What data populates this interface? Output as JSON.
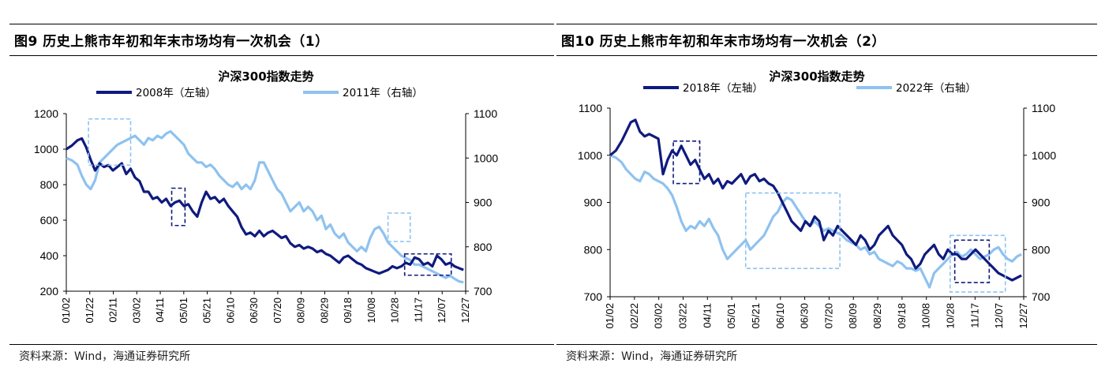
{
  "figures": [
    {
      "title": "图9  历史上熊市年初和年末市场均有一次机会（1）",
      "source": "资料来源：Wind，海通证券研究所"
    },
    {
      "title": "图10 历史上熊市年初和年末市场均有一次机会（2）",
      "source": "资料来源：Wind，海通证券研究所"
    }
  ],
  "chart_data": [
    {
      "type": "line",
      "title": "沪深300指数走势",
      "x_ticks": [
        "01/02",
        "01/22",
        "02/11",
        "03/02",
        "04/11",
        "05/01",
        "05/21",
        "06/10",
        "06/30",
        "07/20",
        "08/09",
        "08/29",
        "09/18",
        "10/08",
        "10/28",
        "11/17",
        "12/07",
        "12/27"
      ],
      "x_range": [
        0,
        360
      ],
      "left_axis": {
        "ticks": [
          200,
          400,
          600,
          800,
          1000,
          1200
        ],
        "ylim": [
          200,
          1200
        ]
      },
      "right_axis": {
        "ticks": [
          700,
          800,
          900,
          1000,
          1100
        ],
        "ylim": [
          700,
          1100
        ]
      },
      "colors": {
        "dark": "#0f1a7e",
        "light": "#8ec2ef"
      },
      "series": [
        {
          "name": "2008年（左轴）",
          "axis": "left",
          "color": "#0f1a7e",
          "x": [
            0,
            5,
            10,
            14,
            18,
            22,
            26,
            30,
            34,
            38,
            42,
            46,
            50,
            54,
            58,
            62,
            66,
            70,
            74,
            78,
            82,
            86,
            90,
            94,
            98,
            102,
            106,
            110,
            114,
            118,
            122,
            126,
            130,
            134,
            138,
            142,
            146,
            150,
            154,
            158,
            162,
            166,
            170,
            174,
            178,
            182,
            186,
            190,
            194,
            198,
            202,
            206,
            210,
            214,
            218,
            222,
            226,
            230,
            234,
            238,
            242,
            246,
            250,
            254,
            258,
            262,
            266,
            270,
            274,
            278,
            282,
            286,
            290,
            294,
            298,
            302,
            306,
            310,
            314,
            318,
            322,
            326,
            330,
            334,
            338,
            342,
            346,
            350,
            354,
            358
          ],
          "y": [
            1000,
            1020,
            1050,
            1060,
            1010,
            940,
            880,
            920,
            900,
            910,
            880,
            900,
            920,
            860,
            890,
            840,
            820,
            760,
            760,
            720,
            730,
            700,
            720,
            680,
            700,
            710,
            680,
            690,
            650,
            620,
            700,
            760,
            720,
            730,
            700,
            720,
            680,
            650,
            620,
            560,
            520,
            530,
            510,
            540,
            510,
            530,
            540,
            520,
            500,
            510,
            470,
            450,
            460,
            440,
            450,
            440,
            420,
            430,
            410,
            400,
            380,
            360,
            390,
            400,
            380,
            360,
            350,
            330,
            320,
            310,
            300,
            310,
            320,
            340,
            330,
            340,
            360,
            350,
            390,
            380,
            350,
            360,
            340,
            400,
            380,
            350,
            360,
            340,
            330,
            320
          ]
        },
        {
          "name": "2011年（右轴）",
          "axis": "right",
          "color": "#8ec2ef",
          "x": [
            0,
            5,
            10,
            14,
            18,
            22,
            26,
            30,
            34,
            38,
            42,
            46,
            50,
            54,
            58,
            62,
            66,
            70,
            74,
            78,
            82,
            86,
            90,
            94,
            98,
            102,
            106,
            110,
            114,
            118,
            122,
            126,
            130,
            134,
            138,
            142,
            146,
            150,
            154,
            158,
            162,
            166,
            170,
            174,
            178,
            182,
            186,
            190,
            194,
            198,
            202,
            206,
            210,
            214,
            218,
            222,
            226,
            230,
            234,
            238,
            242,
            246,
            250,
            254,
            258,
            262,
            266,
            270,
            274,
            278,
            282,
            286,
            290,
            294,
            298,
            302,
            306,
            310,
            314,
            318,
            322,
            326,
            330,
            334,
            338,
            342,
            346,
            350,
            354,
            358
          ],
          "y": [
            1000,
            995,
            985,
            960,
            940,
            930,
            950,
            990,
            1000,
            1010,
            1020,
            1030,
            1035,
            1040,
            1045,
            1050,
            1040,
            1030,
            1045,
            1040,
            1050,
            1045,
            1055,
            1060,
            1050,
            1040,
            1030,
            1010,
            1000,
            990,
            990,
            980,
            985,
            975,
            960,
            950,
            940,
            935,
            945,
            930,
            940,
            930,
            950,
            990,
            990,
            970,
            950,
            930,
            920,
            900,
            880,
            890,
            900,
            880,
            890,
            880,
            860,
            870,
            840,
            850,
            830,
            820,
            830,
            810,
            800,
            790,
            800,
            790,
            820,
            840,
            845,
            830,
            810,
            800,
            790,
            780,
            775,
            770,
            760,
            760,
            755,
            750,
            745,
            740,
            735,
            730,
            735,
            728,
            722,
            720
          ]
        }
      ],
      "highlight_boxes": [
        {
          "series": "2011年（右轴）",
          "x_from": 20,
          "x_to": 58,
          "style": "light-dashed",
          "y_axis": "left",
          "y_from": 910,
          "y_to": 1170
        },
        {
          "series": "2008年（左轴）",
          "x_from": 95,
          "x_to": 107,
          "style": "dark-dashed",
          "y_axis": "left",
          "y_from": 570,
          "y_to": 780
        },
        {
          "series": "2011年（右轴）",
          "x_from": 290,
          "x_to": 310,
          "style": "light-dashed",
          "y_axis": "left",
          "y_from": 480,
          "y_to": 640
        },
        {
          "series": "2008年（左轴）",
          "x_from": 305,
          "x_to": 347,
          "style": "dark-dashed",
          "y_axis": "left",
          "y_from": 290,
          "y_to": 410
        }
      ]
    },
    {
      "type": "line",
      "title": "沪深300指数走势",
      "x_ticks": [
        "01/02",
        "02/22",
        "03/02",
        "03/22",
        "04/11",
        "05/01",
        "05/21",
        "06/10",
        "06/30",
        "07/20",
        "08/09",
        "08/29",
        "09/18",
        "10/08",
        "10/28",
        "11/17",
        "12/07",
        "12/27"
      ],
      "x_range": [
        0,
        360
      ],
      "left_axis": {
        "ticks": [
          700,
          800,
          900,
          1000,
          1100
        ],
        "ylim": [
          700,
          1100
        ]
      },
      "right_axis": {
        "ticks": [
          700,
          800,
          900,
          1000,
          1100
        ],
        "ylim": [
          700,
          1100
        ]
      },
      "colors": {
        "dark": "#0f1a7e",
        "light": "#8ec2ef"
      },
      "series": [
        {
          "name": "2018年（左轴）",
          "axis": "left",
          "color": "#0f1a7e",
          "x": [
            0,
            5,
            10,
            14,
            18,
            22,
            26,
            30,
            34,
            38,
            42,
            46,
            50,
            54,
            58,
            62,
            66,
            70,
            74,
            78,
            82,
            86,
            90,
            94,
            98,
            102,
            106,
            110,
            114,
            118,
            122,
            126,
            130,
            134,
            138,
            142,
            146,
            150,
            154,
            158,
            162,
            166,
            170,
            174,
            178,
            182,
            186,
            190,
            194,
            198,
            202,
            206,
            210,
            214,
            218,
            222,
            226,
            230,
            234,
            238,
            242,
            246,
            250,
            254,
            258,
            262,
            266,
            270,
            274,
            278,
            282,
            286,
            290,
            294,
            298,
            302,
            306,
            310,
            314,
            318,
            322,
            326,
            330,
            334,
            338,
            342,
            346,
            350,
            354,
            358
          ],
          "y": [
            1000,
            1010,
            1030,
            1050,
            1070,
            1075,
            1050,
            1040,
            1045,
            1040,
            1035,
            960,
            990,
            1010,
            1000,
            1020,
            1000,
            980,
            990,
            970,
            950,
            960,
            940,
            950,
            930,
            945,
            940,
            950,
            960,
            940,
            955,
            960,
            945,
            950,
            940,
            935,
            920,
            900,
            880,
            860,
            850,
            840,
            860,
            850,
            870,
            860,
            820,
            840,
            830,
            850,
            840,
            830,
            820,
            810,
            830,
            820,
            800,
            810,
            830,
            840,
            850,
            830,
            820,
            810,
            790,
            780,
            760,
            770,
            790,
            800,
            810,
            790,
            780,
            800,
            790,
            790,
            780,
            780,
            790,
            800,
            790,
            780,
            770,
            760,
            750,
            745,
            740,
            735,
            740,
            745
          ]
        },
        {
          "name": "2022年（右轴）",
          "axis": "right",
          "color": "#8ec2ef",
          "x": [
            0,
            5,
            10,
            14,
            18,
            22,
            26,
            30,
            34,
            38,
            42,
            46,
            50,
            54,
            58,
            62,
            66,
            70,
            74,
            78,
            82,
            86,
            90,
            94,
            98,
            102,
            106,
            110,
            114,
            118,
            122,
            126,
            130,
            134,
            138,
            142,
            146,
            150,
            154,
            158,
            162,
            166,
            170,
            174,
            178,
            182,
            186,
            190,
            194,
            198,
            202,
            206,
            210,
            214,
            218,
            222,
            226,
            230,
            234,
            238,
            242,
            246,
            250,
            254,
            258,
            262,
            266,
            270,
            274,
            278,
            282,
            286,
            290,
            294,
            298,
            302,
            306,
            310,
            314,
            318,
            322,
            326,
            330,
            334,
            338,
            342,
            346,
            350,
            354,
            358
          ],
          "y": [
            1000,
            995,
            985,
            970,
            960,
            950,
            945,
            965,
            960,
            950,
            945,
            940,
            930,
            915,
            890,
            860,
            840,
            850,
            845,
            860,
            850,
            865,
            845,
            830,
            800,
            780,
            790,
            800,
            810,
            820,
            800,
            810,
            820,
            830,
            850,
            870,
            880,
            900,
            910,
            905,
            890,
            875,
            860,
            850,
            860,
            850,
            840,
            845,
            840,
            835,
            830,
            820,
            815,
            810,
            800,
            805,
            790,
            795,
            780,
            775,
            770,
            765,
            775,
            770,
            760,
            760,
            755,
            760,
            740,
            720,
            750,
            760,
            770,
            780,
            790,
            795,
            785,
            790,
            800,
            790,
            780,
            785,
            790,
            800,
            805,
            790,
            780,
            775,
            785,
            790
          ]
        }
      ],
      "highlight_boxes": [
        {
          "series": "2018年（左轴）",
          "x_from": 55,
          "x_to": 78,
          "style": "dark-dashed",
          "y_axis": "left",
          "y_from": 940,
          "y_to": 1030
        },
        {
          "series": "2022年（右轴）",
          "x_from": 118,
          "x_to": 200,
          "style": "light-dashed",
          "y_axis": "left",
          "y_from": 760,
          "y_to": 920
        },
        {
          "series": "2018年（左轴）",
          "x_from": 300,
          "x_to": 330,
          "style": "dark-dashed",
          "y_axis": "left",
          "y_from": 730,
          "y_to": 820
        },
        {
          "series": "2022年（右轴）",
          "x_from": 296,
          "x_to": 344,
          "style": "light-dashed",
          "y_axis": "left",
          "y_from": 710,
          "y_to": 830
        }
      ]
    }
  ]
}
